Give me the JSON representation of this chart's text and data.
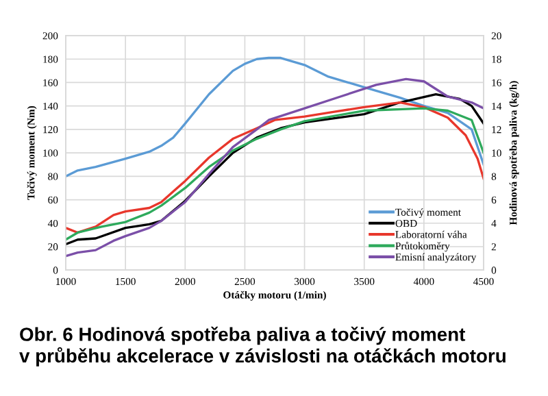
{
  "chart_data": {
    "type": "line",
    "xlabel": "Otáčky motoru (1/min)",
    "ylabel": "Točivý moment (Nm)",
    "y2label": "Hodinová spotřeba paliva (kg/h)",
    "annotations": [
      "Obr. 6 Hodinová spotřeba paliva a točivý moment\nv průběhu akcelerace v závislosti na otáčkách motoru"
    ],
    "xlim": [
      1000,
      4500
    ],
    "xticks": [
      1000,
      1500,
      2000,
      2500,
      3000,
      3500,
      4000,
      4500
    ],
    "ylim": [
      0,
      200
    ],
    "yticks": [
      0,
      20,
      40,
      60,
      80,
      100,
      120,
      140,
      160,
      180,
      200
    ],
    "y2lim": [
      0,
      20
    ],
    "y2ticks": [
      0,
      2,
      4,
      6,
      8,
      10,
      12,
      14,
      16,
      18,
      20
    ],
    "grid": true,
    "legend": "bottom right",
    "line_style": "solid",
    "series": [
      {
        "name": "Točivý moment",
        "color": "#5b9bd5",
        "x": [
          1000,
          1100,
          1250,
          1500,
          1700,
          1800,
          1900,
          2000,
          2200,
          2400,
          2500,
          2600,
          2700,
          2800,
          3000,
          3200,
          3500,
          3800,
          4000,
          4200,
          4400,
          4500
        ],
        "values": [
          80,
          85,
          88,
          95,
          101,
          106,
          113,
          125,
          150,
          170,
          176,
          180,
          181,
          181,
          175,
          165,
          156,
          147,
          140,
          134,
          120,
          90
        ]
      },
      {
        "name": "OBD",
        "color": "#000000",
        "axis": "y2",
        "x": [
          1000,
          1100,
          1250,
          1500,
          1700,
          1800,
          2000,
          2200,
          2400,
          2600,
          2800,
          3000,
          3500,
          3800,
          4100,
          4300,
          4400,
          4500
        ],
        "values": [
          2.2,
          2.6,
          2.7,
          3.6,
          3.9,
          4.2,
          5.9,
          8.0,
          10.0,
          11.3,
          12.1,
          12.6,
          13.3,
          14.3,
          15.0,
          14.6,
          14.0,
          12.5
        ]
      },
      {
        "name": "Laboratorní váha",
        "color": "#e8372c",
        "axis": "y2",
        "x": [
          1000,
          1100,
          1250,
          1400,
          1500,
          1700,
          1800,
          2000,
          2200,
          2400,
          2600,
          2750,
          3000,
          3250,
          3500,
          3800,
          4000,
          4200,
          4350,
          4450,
          4500
        ],
        "values": [
          3.6,
          3.2,
          3.7,
          4.7,
          5.0,
          5.3,
          5.8,
          7.6,
          9.6,
          11.2,
          12.1,
          12.8,
          13.1,
          13.5,
          13.9,
          14.3,
          13.9,
          13.0,
          11.5,
          9.5,
          7.8
        ]
      },
      {
        "name": "Průtokoměry",
        "color": "#2eaa5c",
        "axis": "y2",
        "x": [
          1000,
          1100,
          1300,
          1500,
          1700,
          1800,
          2000,
          2200,
          2400,
          2600,
          2800,
          3000,
          3500,
          4000,
          4200,
          4400,
          4500
        ],
        "values": [
          2.6,
          3.2,
          3.7,
          4.1,
          4.9,
          5.5,
          7.0,
          8.8,
          10.2,
          11.2,
          12.0,
          12.7,
          13.6,
          13.8,
          13.6,
          12.8,
          10.0
        ]
      },
      {
        "name": "Emisní analyzátory",
        "color": "#7b4fa8",
        "axis": "y2",
        "x": [
          1000,
          1100,
          1250,
          1400,
          1500,
          1700,
          1800,
          2000,
          2200,
          2400,
          2600,
          2700,
          3000,
          3300,
          3600,
          3850,
          4000,
          4200,
          4400,
          4500
        ],
        "values": [
          1.2,
          1.5,
          1.7,
          2.5,
          2.9,
          3.6,
          4.2,
          5.8,
          8.2,
          10.5,
          12.0,
          12.8,
          13.8,
          14.8,
          15.8,
          16.3,
          16.1,
          14.8,
          14.3,
          13.8
        ]
      }
    ]
  }
}
